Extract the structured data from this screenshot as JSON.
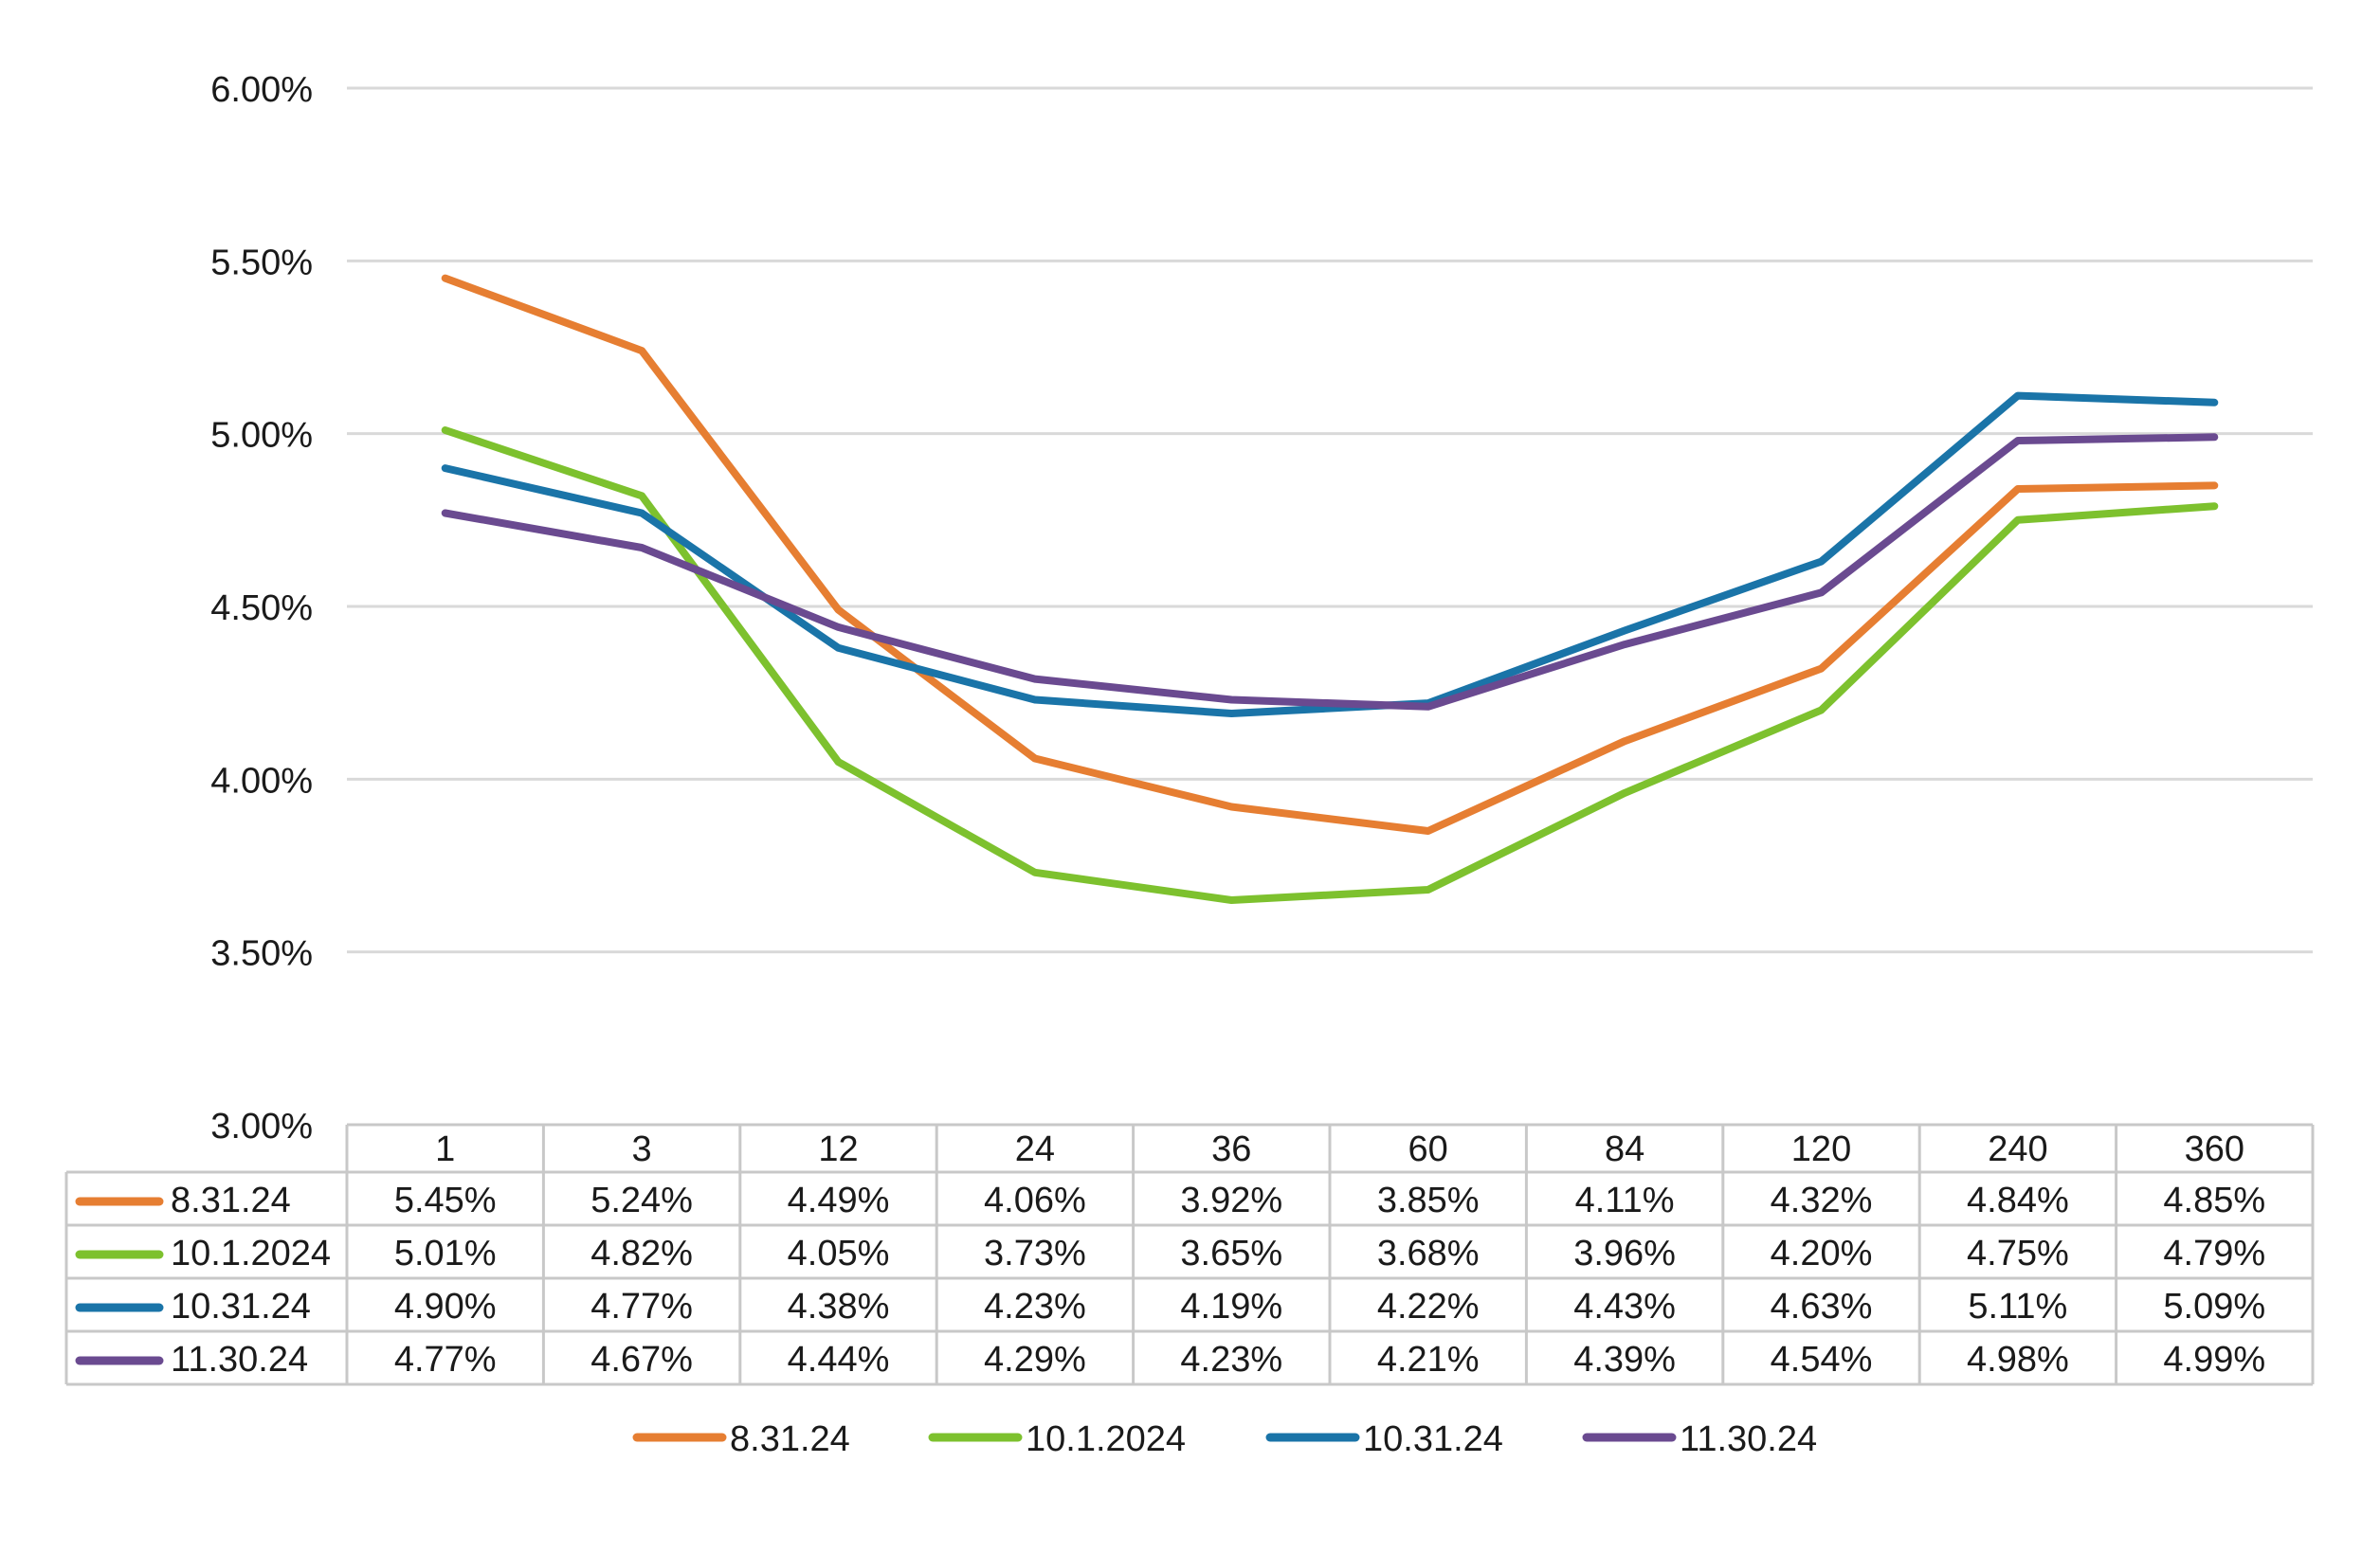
{
  "chart_data": {
    "type": "line",
    "title": "",
    "xlabel": "",
    "ylabel": "",
    "categories": [
      "1",
      "3",
      "12",
      "24",
      "36",
      "60",
      "84",
      "120",
      "240",
      "360"
    ],
    "ylim": [
      3.0,
      6.0
    ],
    "yticks": [
      3.0,
      3.5,
      4.0,
      4.5,
      5.0,
      5.5,
      6.0
    ],
    "ytick_labels": [
      "3.00%",
      "3.50%",
      "4.00%",
      "4.50%",
      "5.00%",
      "5.50%",
      "6.00%"
    ],
    "grid": true,
    "legend_position": "bottom",
    "data_table": true,
    "series": [
      {
        "name": "8.31.24",
        "color": "#E67E32",
        "values": [
          5.45,
          5.24,
          4.49,
          4.06,
          3.92,
          3.85,
          4.11,
          4.32,
          4.84,
          4.85
        ],
        "labels": [
          "5.45%",
          "5.24%",
          "4.49%",
          "4.06%",
          "3.92%",
          "3.85%",
          "4.11%",
          "4.32%",
          "4.84%",
          "4.85%"
        ]
      },
      {
        "name": "10.1.2024",
        "color": "#7DC12E",
        "values": [
          5.01,
          4.82,
          4.05,
          3.73,
          3.65,
          3.68,
          3.96,
          4.2,
          4.75,
          4.79
        ],
        "labels": [
          "5.01%",
          "4.82%",
          "4.05%",
          "3.73%",
          "3.65%",
          "3.68%",
          "3.96%",
          "4.20%",
          "4.75%",
          "4.79%"
        ]
      },
      {
        "name": "10.31.24",
        "color": "#1A74A8",
        "values": [
          4.9,
          4.77,
          4.38,
          4.23,
          4.19,
          4.22,
          4.43,
          4.63,
          5.11,
          5.09
        ],
        "labels": [
          "4.90%",
          "4.77%",
          "4.38%",
          "4.23%",
          "4.19%",
          "4.22%",
          "4.43%",
          "4.63%",
          "5.11%",
          "5.09%"
        ]
      },
      {
        "name": "11.30.24",
        "color": "#6A4A90",
        "values": [
          4.77,
          4.67,
          4.44,
          4.29,
          4.23,
          4.21,
          4.39,
          4.54,
          4.98,
          4.99
        ],
        "labels": [
          "4.77%",
          "4.67%",
          "4.44%",
          "4.29%",
          "4.23%",
          "4.21%",
          "4.39%",
          "4.54%",
          "4.98%",
          "4.99%"
        ]
      }
    ]
  }
}
